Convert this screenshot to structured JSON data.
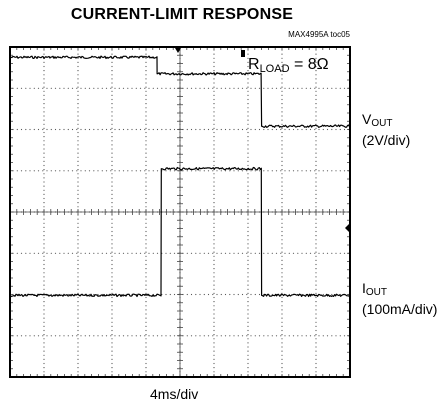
{
  "title": "CURRENT-LIMIT RESPONSE",
  "figure_tag": "MAX4995A toc05",
  "chart_data": {
    "type": "line",
    "title": "CURRENT-LIMIT RESPONSE",
    "x_axis": {
      "label": "4ms/div",
      "divisions": 10,
      "units_per_div": 4,
      "unit": "ms",
      "range": [
        0,
        40
      ]
    },
    "y_axis": {
      "divisions": 8
    },
    "grid": true,
    "annotation": {
      "text_main": "R",
      "text_sub": "LOAD",
      "text_value": " = 8Ω"
    },
    "series": [
      {
        "name": "VOUT",
        "name_main": "V",
        "name_sub": "OUT",
        "scale": "(2V/div)",
        "x": [
          0,
          17.3,
          17.3,
          29.6,
          29.6,
          40
        ],
        "y_div": [
          3.75,
          3.75,
          3.35,
          3.35,
          2.08,
          2.08
        ]
      },
      {
        "name": "IOUT",
        "name_main": "I",
        "name_sub": "OUT",
        "scale": "(100mA/div)",
        "x": [
          0,
          17.8,
          17.8,
          29.6,
          29.6,
          40
        ],
        "y_div": [
          -2.02,
          -2.02,
          1.05,
          1.05,
          -2.02,
          -2.02
        ]
      }
    ]
  }
}
